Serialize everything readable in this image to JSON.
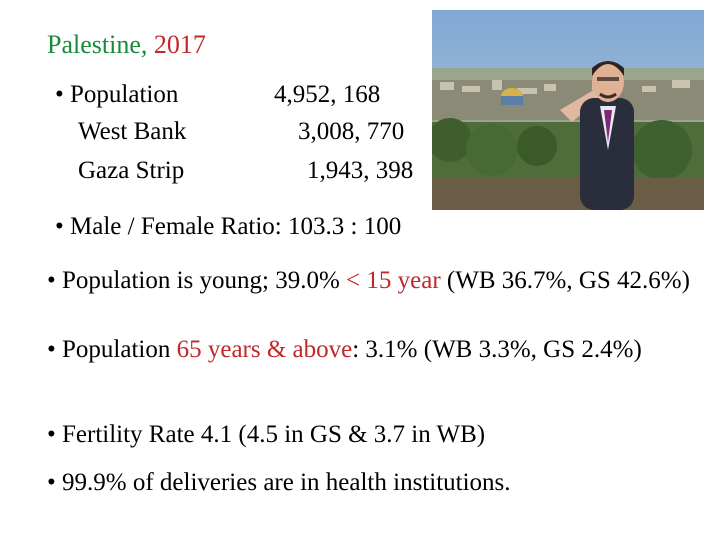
{
  "title": {
    "place": "Palestine,",
    "year": "2017"
  },
  "population": {
    "rows": [
      {
        "label": "• Population",
        "value": "4,952, 168"
      },
      {
        "label": "West Bank",
        "value": "3,008, 770"
      },
      {
        "label": "Gaza Strip",
        "value": "1,943, 398"
      }
    ]
  },
  "ratio": {
    "text": "• Male / Female Ratio:  103.3 : 100"
  },
  "young": {
    "prefix": "• Population is young; 39.0% ",
    "highlight": "< 15 year",
    "suffix": " (WB 36.7%, GS 42.6%)"
  },
  "elderly": {
    "prefix": "• Population ",
    "highlight": "65 years & above",
    "suffix": ": 3.1% (WB 3.3%, GS 2.4%)"
  },
  "fertility": {
    "text": "• Fertility Rate 4.1 (4.5 in GS & 3.7 in WB)"
  },
  "deliveries": {
    "text": "• 99.9% of deliveries are in health institutions."
  },
  "colors": {
    "green": "#1a8a3a",
    "red": "#c0282a"
  }
}
